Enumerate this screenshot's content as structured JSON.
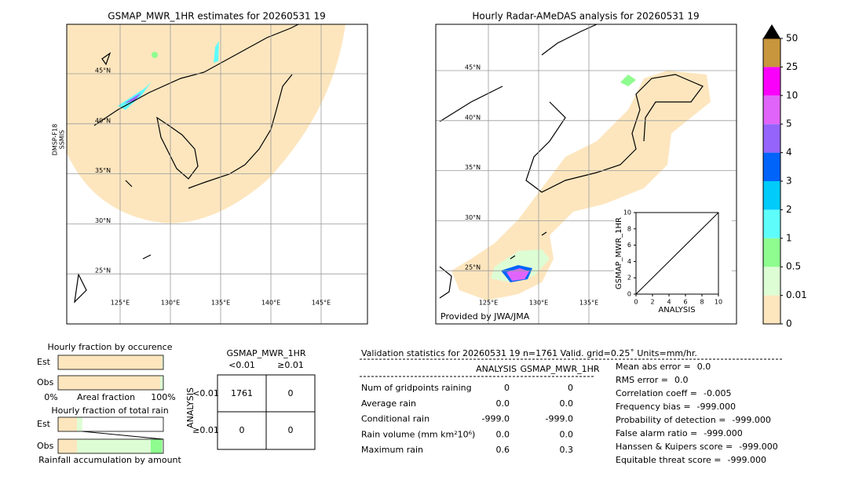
{
  "left_map": {
    "title": "GSMAP_MWR_1HR estimates for 20260531 19",
    "side_label": [
      "DMSP-F18",
      "SSMIS"
    ],
    "lat_labels": [
      "45°N",
      "40°N",
      "35°N",
      "30°N",
      "25°N"
    ],
    "lon_labels": [
      "125°E",
      "130°E",
      "135°E",
      "140°E",
      "145°E"
    ]
  },
  "right_map": {
    "title": "Hourly Radar-AMeDAS analysis for 20260531 19",
    "lat_labels": [
      "45°N",
      "40°N",
      "35°N",
      "30°N",
      "25°N"
    ],
    "lon_labels": [
      "125°E",
      "130°E",
      "135°E"
    ],
    "credit": "Provided by JWA/JMA"
  },
  "inset": {
    "x_label": "ANALYSIS",
    "y_label": "GSMAP_MWR_1HR",
    "xlim": [
      0,
      10
    ],
    "ylim": [
      0,
      10
    ],
    "xticks": [
      0,
      2,
      4,
      6,
      8,
      10
    ],
    "yticks": [
      0,
      2,
      4,
      6,
      8,
      10
    ]
  },
  "colorbar": {
    "levels": [
      0,
      0.01,
      0.5,
      1,
      2,
      3,
      4,
      5,
      10,
      25,
      50
    ],
    "colors": [
      "#fde6be",
      "#ddfdd5",
      "#8efc8e",
      "#5ffcfc",
      "#00cbfa",
      "#0064fa",
      "#9564fa",
      "#e164fa",
      "#fa00fa",
      "#c8963c"
    ],
    "extend_color": "#000000"
  },
  "fraction_occurrence": {
    "title": "Hourly fraction by occurence",
    "rows": [
      "Est",
      "Obs"
    ],
    "x_labels": [
      "0%",
      "Areal fraction",
      "100%"
    ],
    "colors": [
      "#fde6be",
      "#ddfdd5"
    ],
    "segments": [
      [
        99,
        1
      ],
      [
        97,
        3
      ]
    ]
  },
  "fraction_total": {
    "title": "Hourly fraction of total rain",
    "rows": [
      "Est",
      "Obs"
    ],
    "x_label": "Rainfall accumulation by amount",
    "colors": [
      "#fde6be",
      "#ddfdd5",
      "#8efc8e"
    ],
    "segments": [
      [
        18,
        5,
        0
      ],
      [
        18,
        70,
        11
      ]
    ]
  },
  "contingency": {
    "title": "GSMAP_MWR_1HR",
    "col_headers": [
      "<0.01",
      "≥0.01"
    ],
    "row_axis": "ANALYSIS",
    "row_headers": [
      "<0.01",
      "≥0.01"
    ],
    "cells": [
      [
        "1761",
        "0"
      ],
      [
        "0",
        "0"
      ]
    ]
  },
  "validation": {
    "header": "Validation statistics for 20260531 19  n=1761 Valid. grid=0.25˚ Units=mm/hr.",
    "columns": [
      "ANALYSIS",
      "GSMAP_MWR_1HR"
    ],
    "rows": [
      {
        "label": "Num of gridpoints raining",
        "values": [
          "0",
          "0"
        ]
      },
      {
        "label": "Average rain",
        "values": [
          "0.0",
          "0.0"
        ]
      },
      {
        "label": "Conditional rain",
        "values": [
          "-999.0",
          "-999.0"
        ]
      },
      {
        "label": "Rain volume (mm km²10⁶)",
        "values": [
          "0.0",
          "0.0"
        ]
      },
      {
        "label": "Maximum rain",
        "values": [
          "0.6",
          "0.3"
        ]
      }
    ],
    "scores": [
      {
        "label": "Mean abs error =",
        "value": "0.0"
      },
      {
        "label": "RMS error =",
        "value": "0.0"
      },
      {
        "label": "Correlation coeff =",
        "value": "-0.005"
      },
      {
        "label": "Frequency bias =",
        "value": "-999.000"
      },
      {
        "label": "Probability of detection =",
        "value": "-999.000"
      },
      {
        "label": "False alarm ratio =",
        "value": "-999.000"
      },
      {
        "label": "Hanssen & Kuipers score =",
        "value": "-999.000"
      },
      {
        "label": "Equitable threat score =",
        "value": "-999.000"
      }
    ]
  }
}
